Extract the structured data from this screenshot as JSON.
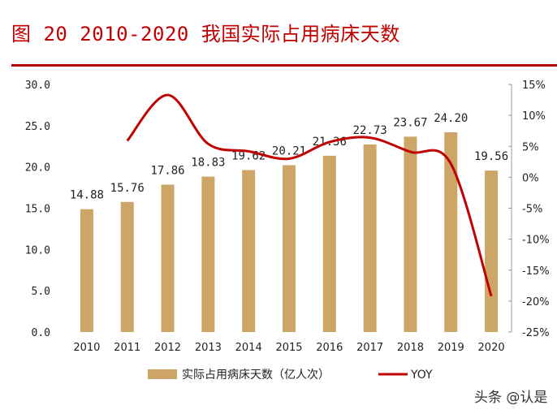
{
  "title": "图 20 2010-2020 我国实际占用病床天数",
  "watermark": "头条 @认是",
  "chart_data": {
    "type": "bar+line",
    "categories": [
      "2010",
      "2011",
      "2012",
      "2013",
      "2014",
      "2015",
      "2016",
      "2017",
      "2018",
      "2019",
      "2020"
    ],
    "series": [
      {
        "name": "实际占用病床天数（亿人次）",
        "type": "bar",
        "axis": "left",
        "color": "#cda566",
        "values": [
          14.88,
          15.76,
          17.86,
          18.83,
          19.62,
          20.21,
          21.36,
          22.73,
          23.67,
          24.2,
          19.56
        ],
        "labels": [
          "14.88",
          "15.76",
          "17.86",
          "18.83",
          "19.62",
          "20.21",
          "21.36",
          "22.73",
          "23.67",
          "24.20",
          "19.56"
        ]
      },
      {
        "name": "YOY",
        "type": "line",
        "axis": "right",
        "color": "#c00000",
        "values": [
          null,
          5.9,
          13.3,
          5.4,
          4.2,
          3.0,
          5.7,
          6.4,
          4.1,
          2.2,
          -19.2
        ]
      }
    ],
    "left_axis": {
      "ylim": [
        0,
        30
      ],
      "ticks": [
        "0.0",
        "5.0",
        "10.0",
        "15.0",
        "20.0",
        "25.0",
        "30.0"
      ]
    },
    "right_axis": {
      "ylim": [
        -25,
        15
      ],
      "ticks": [
        "-25%",
        "-20%",
        "-15%",
        "-10%",
        "-5%",
        "0%",
        "5%",
        "10%",
        "15%"
      ]
    },
    "legend": {
      "position": "bottom",
      "items": [
        "实际占用病床天数（亿人次）",
        "YOY"
      ]
    },
    "grid": false
  }
}
